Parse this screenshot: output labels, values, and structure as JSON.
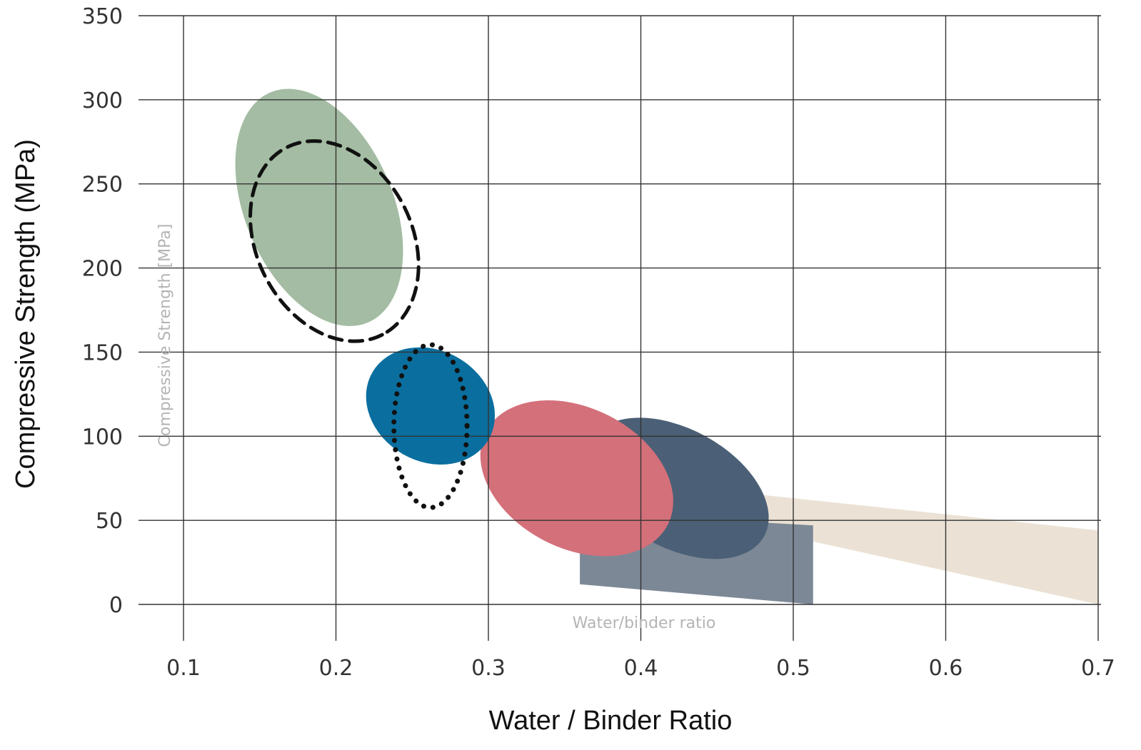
{
  "chart_data": {
    "type": "scatter",
    "xlabel": "Water / Binder Ratio",
    "ylabel": "Compressive  Strength (MPa)",
    "xlim": [
      0.07,
      0.7
    ],
    "ylim": [
      0,
      350
    ],
    "x_ticks": [
      "0.1",
      "0.2",
      "0.3",
      "0.4",
      "0.5",
      "0.6",
      "0.7"
    ],
    "y_ticks": [
      "0",
      "50",
      "100",
      "150",
      "200",
      "250",
      "300",
      "350"
    ],
    "grid": true,
    "inner_labels": {
      "y": "Compressive Strength [MPa]",
      "x": "Water/binder ratio"
    },
    "regions": [
      {
        "shape": "band",
        "color": "#ebe2d5",
        "points": [
          [
            0.46,
            67
          ],
          [
            0.7,
            44
          ],
          [
            0.7,
            0
          ],
          [
            0.46,
            48
          ]
        ]
      },
      {
        "shape": "quad",
        "color": "#7c8896",
        "points": [
          [
            0.36,
            55
          ],
          [
            0.513,
            47
          ],
          [
            0.513,
            0
          ],
          [
            0.36,
            12
          ]
        ]
      },
      {
        "shape": "ellipse",
        "color": "#4b6076",
        "cx": 0.424,
        "cy": 69,
        "rx": 0.065,
        "ry": 16,
        "angle": 29
      },
      {
        "shape": "ellipse",
        "color": "#d4707a",
        "cx": 0.358,
        "cy": 75,
        "rx": 0.067,
        "ry": 19,
        "angle": 27
      },
      {
        "shape": "ellipse",
        "color": "#0a6f9f",
        "cx": 0.262,
        "cy": 118,
        "rx": 0.044,
        "ry": 15,
        "angle": 30
      },
      {
        "shape": "ellipse",
        "color": "#a3bca3",
        "cx": 0.189,
        "cy": 236,
        "rx": 0.082,
        "ry": 20,
        "angle": 67
      },
      {
        "shape": "ellipse",
        "outline": "dashed",
        "color": "#111111",
        "cx": 0.199,
        "cy": 216,
        "rx": 0.069,
        "ry": 21,
        "angle": 63
      },
      {
        "shape": "ellipse",
        "outline": "dotted",
        "color": "#111111",
        "cx": 0.262,
        "cy": 106,
        "rx": 0.024,
        "ry": 22,
        "angle": 0
      }
    ]
  }
}
